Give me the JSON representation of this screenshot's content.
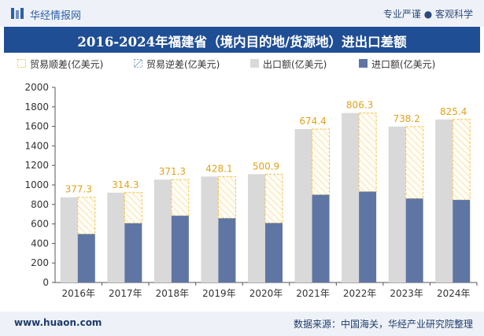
{
  "header": {
    "brand": "华经情报网",
    "slogan": "专业严谨 ● 客观科学"
  },
  "title": "2016-2024年福建省（境内目的地/货源地）进出口差额",
  "legend": {
    "surplus": "贸易顺差(亿美元)",
    "deficit": "贸易逆差(亿美元)",
    "export": "出口额(亿美元)",
    "import": "进口额(亿美元)"
  },
  "footer": {
    "url": "www.huaon.com",
    "source": "数据来源：中国海关，华经产业研究院整理"
  },
  "colors": {
    "export": "#d9d9d9",
    "import": "#5f75a3",
    "surplus_border": "#f5c342",
    "title_bg": "#1f4e95",
    "label": "#e0a21a"
  },
  "chart_data": {
    "type": "bar",
    "categories": [
      "2016年",
      "2017年",
      "2018年",
      "2019年",
      "2020年",
      "2021年",
      "2022年",
      "2023年",
      "2024年"
    ],
    "series": [
      {
        "name": "出口额(亿美元)",
        "values": [
          873,
          921,
          1055,
          1086,
          1110,
          1573,
          1737,
          1598,
          1671
        ]
      },
      {
        "name": "进口额(亿美元)",
        "values": [
          496,
          607,
          684,
          658,
          609,
          899,
          931,
          860,
          846
        ]
      },
      {
        "name": "贸易顺差(亿美元)",
        "values": [
          377.3,
          314.3,
          371.3,
          428.1,
          500.9,
          674.4,
          806.3,
          738.2,
          825.4
        ]
      },
      {
        "name": "贸易逆差(亿美元)",
        "values": [
          null,
          null,
          null,
          null,
          null,
          null,
          null,
          null,
          null
        ]
      }
    ],
    "ylim": [
      0,
      2000
    ],
    "yticks": [
      "0",
      "200",
      "400",
      "600",
      "800",
      "1000",
      "1200",
      "1400",
      "1600",
      "1800",
      "2000"
    ],
    "grid": false,
    "legend_position": "top"
  }
}
